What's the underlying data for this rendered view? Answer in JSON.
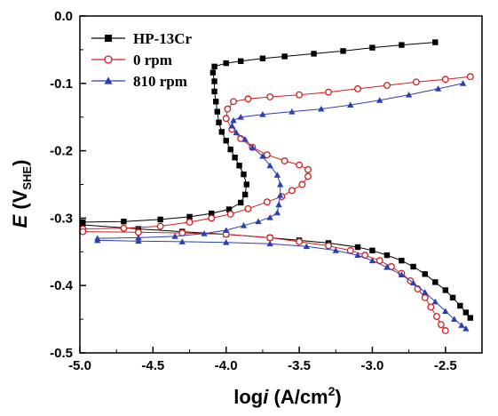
{
  "chart_data": {
    "type": "scatter",
    "xlabel": {
      "main": "log",
      "italic": "i",
      "unit": " (A/cm",
      "sup": "2",
      "close": ")"
    },
    "ylabel": {
      "italic": "E",
      "open": " (V",
      "sub": "SHE",
      "close": ")"
    },
    "xlim": [
      -5.0,
      -2.25
    ],
    "ylim": [
      -0.5,
      0.0
    ],
    "xticks": [
      -5.0,
      -4.5,
      -4.0,
      -3.5,
      -3.0,
      -2.5
    ],
    "xtick_labels": [
      "-5.0",
      "-4.5",
      "-4.0",
      "-3.5",
      "-3.0",
      "-2.5"
    ],
    "yticks": [
      0.0,
      -0.1,
      -0.2,
      -0.3,
      -0.4,
      -0.5
    ],
    "ytick_labels": [
      "0.0",
      "-0.1",
      "-0.2",
      "-0.3",
      "-0.4",
      "-0.5"
    ],
    "grid": false,
    "legend_position": "top-left",
    "series": [
      {
        "name": "HP-13Cr",
        "color": "#000000",
        "marker": "square-filled",
        "points": [
          [
            -4.98,
            -0.306
          ],
          [
            -4.7,
            -0.305
          ],
          [
            -4.45,
            -0.302
          ],
          [
            -4.25,
            -0.298
          ],
          [
            -4.1,
            -0.293
          ],
          [
            -3.98,
            -0.287
          ],
          [
            -3.9,
            -0.277
          ],
          [
            -3.87,
            -0.265
          ],
          [
            -3.86,
            -0.25
          ],
          [
            -3.88,
            -0.235
          ],
          [
            -3.91,
            -0.222
          ],
          [
            -3.94,
            -0.21
          ],
          [
            -3.97,
            -0.198
          ],
          [
            -4.0,
            -0.185
          ],
          [
            -4.03,
            -0.172
          ],
          [
            -4.05,
            -0.158
          ],
          [
            -4.06,
            -0.142
          ],
          [
            -4.07,
            -0.127
          ],
          [
            -4.08,
            -0.112
          ],
          [
            -4.08,
            -0.097
          ],
          [
            -4.09,
            -0.084
          ],
          [
            -4.08,
            -0.075
          ],
          [
            -4.0,
            -0.07
          ],
          [
            -3.9,
            -0.067
          ],
          [
            -3.75,
            -0.063
          ],
          [
            -3.6,
            -0.06
          ],
          [
            -3.4,
            -0.056
          ],
          [
            -3.2,
            -0.052
          ],
          [
            -3.0,
            -0.047
          ],
          [
            -2.8,
            -0.043
          ],
          [
            -2.57,
            -0.039
          ],
          [
            -4.98,
            -0.31
          ],
          [
            -4.6,
            -0.316
          ],
          [
            -4.3,
            -0.32
          ],
          [
            -4.0,
            -0.324
          ],
          [
            -3.7,
            -0.329
          ],
          [
            -3.5,
            -0.333
          ],
          [
            -3.3,
            -0.337
          ],
          [
            -3.1,
            -0.343
          ],
          [
            -3.0,
            -0.348
          ],
          [
            -2.9,
            -0.355
          ],
          [
            -2.8,
            -0.363
          ],
          [
            -2.72,
            -0.372
          ],
          [
            -2.64,
            -0.383
          ],
          [
            -2.57,
            -0.395
          ],
          [
            -2.5,
            -0.407
          ],
          [
            -2.45,
            -0.418
          ],
          [
            -2.4,
            -0.43
          ],
          [
            -2.36,
            -0.44
          ],
          [
            -2.33,
            -0.448
          ]
        ]
      },
      {
        "name": "0 rpm",
        "color": "#d21e1e",
        "marker": "circle-open",
        "points": [
          [
            -4.98,
            -0.316
          ],
          [
            -4.7,
            -0.315
          ],
          [
            -4.45,
            -0.312
          ],
          [
            -4.25,
            -0.306
          ],
          [
            -4.1,
            -0.3
          ],
          [
            -3.97,
            -0.294
          ],
          [
            -3.85,
            -0.286
          ],
          [
            -3.72,
            -0.276
          ],
          [
            -3.62,
            -0.268
          ],
          [
            -3.55,
            -0.259
          ],
          [
            -3.48,
            -0.25
          ],
          [
            -3.44,
            -0.238
          ],
          [
            -3.44,
            -0.228
          ],
          [
            -3.5,
            -0.221
          ],
          [
            -3.6,
            -0.215
          ],
          [
            -3.72,
            -0.206
          ],
          [
            -3.82,
            -0.195
          ],
          [
            -3.9,
            -0.182
          ],
          [
            -3.96,
            -0.168
          ],
          [
            -4.0,
            -0.152
          ],
          [
            -3.99,
            -0.138
          ],
          [
            -3.95,
            -0.127
          ],
          [
            -3.85,
            -0.123
          ],
          [
            -3.7,
            -0.12
          ],
          [
            -3.5,
            -0.117
          ],
          [
            -3.3,
            -0.113
          ],
          [
            -3.1,
            -0.108
          ],
          [
            -2.9,
            -0.103
          ],
          [
            -2.7,
            -0.098
          ],
          [
            -2.5,
            -0.094
          ],
          [
            -2.33,
            -0.09
          ],
          [
            -4.98,
            -0.32
          ],
          [
            -4.6,
            -0.321
          ],
          [
            -4.3,
            -0.322
          ],
          [
            -4.0,
            -0.324
          ],
          [
            -3.7,
            -0.329
          ],
          [
            -3.5,
            -0.335
          ],
          [
            -3.3,
            -0.341
          ],
          [
            -3.15,
            -0.348
          ],
          [
            -3.05,
            -0.355
          ],
          [
            -2.95,
            -0.363
          ],
          [
            -2.87,
            -0.372
          ],
          [
            -2.8,
            -0.382
          ],
          [
            -2.74,
            -0.393
          ],
          [
            -2.69,
            -0.405
          ],
          [
            -2.64,
            -0.418
          ],
          [
            -2.6,
            -0.432
          ],
          [
            -2.56,
            -0.446
          ],
          [
            -2.53,
            -0.458
          ],
          [
            -2.5,
            -0.467
          ]
        ]
      },
      {
        "name": "810 rpm",
        "color": "#2a3fb5",
        "marker": "triangle-filled",
        "points": [
          [
            -4.88,
            -0.33
          ],
          [
            -4.6,
            -0.329
          ],
          [
            -4.35,
            -0.327
          ],
          [
            -4.15,
            -0.323
          ],
          [
            -4.0,
            -0.318
          ],
          [
            -3.88,
            -0.311
          ],
          [
            -3.78,
            -0.305
          ],
          [
            -3.7,
            -0.299
          ],
          [
            -3.65,
            -0.292
          ],
          [
            -3.64,
            -0.28
          ],
          [
            -3.63,
            -0.266
          ],
          [
            -3.63,
            -0.25
          ],
          [
            -3.65,
            -0.236
          ],
          [
            -3.7,
            -0.222
          ],
          [
            -3.75,
            -0.208
          ],
          [
            -3.82,
            -0.195
          ],
          [
            -3.87,
            -0.183
          ],
          [
            -3.93,
            -0.173
          ],
          [
            -3.96,
            -0.163
          ],
          [
            -3.95,
            -0.155
          ],
          [
            -3.9,
            -0.15
          ],
          [
            -3.75,
            -0.146
          ],
          [
            -3.55,
            -0.142
          ],
          [
            -3.35,
            -0.138
          ],
          [
            -3.15,
            -0.132
          ],
          [
            -2.95,
            -0.125
          ],
          [
            -2.75,
            -0.117
          ],
          [
            -2.55,
            -0.108
          ],
          [
            -2.38,
            -0.1
          ],
          [
            -4.88,
            -0.333
          ],
          [
            -4.6,
            -0.334
          ],
          [
            -4.3,
            -0.335
          ],
          [
            -4.0,
            -0.336
          ],
          [
            -3.7,
            -0.338
          ],
          [
            -3.45,
            -0.342
          ],
          [
            -3.25,
            -0.348
          ],
          [
            -3.1,
            -0.355
          ],
          [
            -3.0,
            -0.363
          ],
          [
            -2.9,
            -0.373
          ],
          [
            -2.8,
            -0.384
          ],
          [
            -2.72,
            -0.396
          ],
          [
            -2.64,
            -0.41
          ],
          [
            -2.57,
            -0.424
          ],
          [
            -2.5,
            -0.438
          ],
          [
            -2.44,
            -0.45
          ],
          [
            -2.39,
            -0.459
          ],
          [
            -2.36,
            -0.464
          ]
        ]
      }
    ]
  }
}
